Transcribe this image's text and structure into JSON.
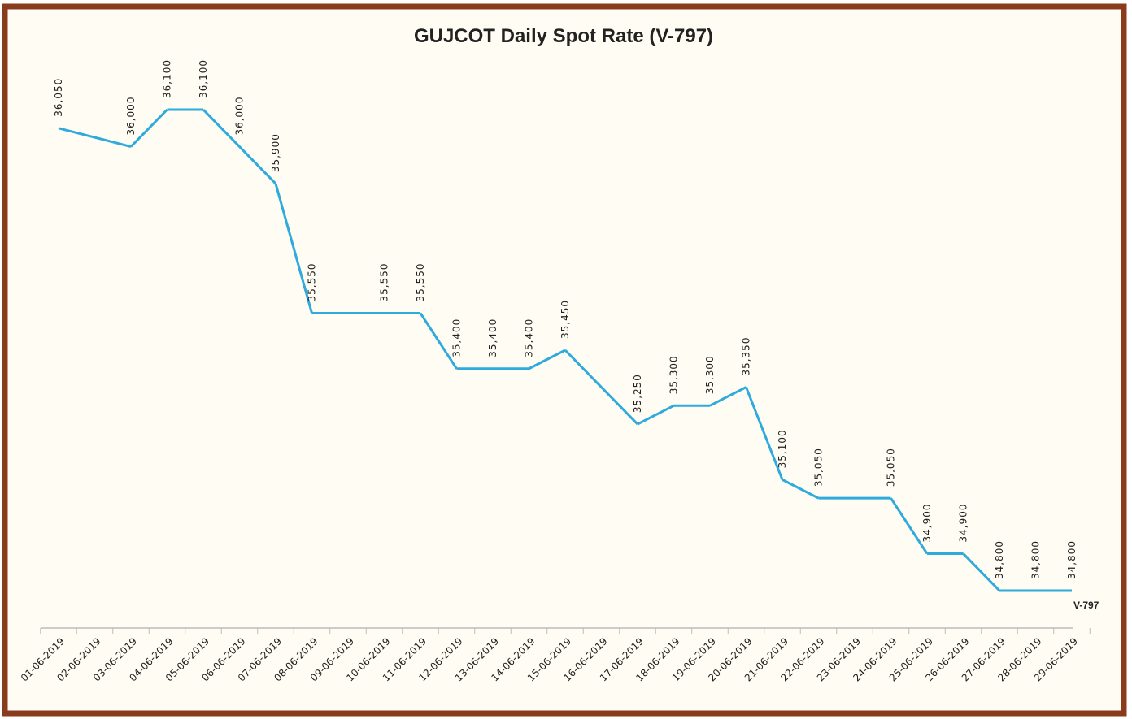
{
  "chart_data": {
    "type": "line",
    "title": "GUJCOT Daily Spot Rate (V-797)",
    "categories": [
      "01-06-2019",
      "02-06-2019",
      "03-06-2019",
      "04-06-2019",
      "05-06-2019",
      "06-06-2019",
      "07-06-2019",
      "08-06-2019",
      "09-06-2019",
      "10-06-2019",
      "11-06-2019",
      "12-06-2019",
      "13-06-2019",
      "14-06-2019",
      "15-06-2019",
      "16-06-2019",
      "17-06-2019",
      "18-06-2019",
      "19-06-2019",
      "20-06-2019",
      "21-06-2019",
      "22-06-2019",
      "23-06-2019",
      "24-06-2019",
      "25-06-2019",
      "26-06-2019",
      "27-06-2019",
      "28-06-2019",
      "29-06-2019"
    ],
    "series": [
      {
        "name": "V-797",
        "color": "#2eaadc",
        "values": [
          36050,
          null,
          36000,
          36100,
          36100,
          36000,
          35900,
          35550,
          null,
          35550,
          35550,
          35400,
          35400,
          35400,
          35450,
          null,
          35250,
          35300,
          35300,
          35350,
          35100,
          35050,
          null,
          35050,
          34900,
          34900,
          34800,
          34800,
          34800
        ],
        "value_labels": [
          "36,050",
          null,
          "36,000",
          "36,100",
          "36,100",
          "36,000",
          "35,900",
          "35,550",
          null,
          "35,550",
          "35,550",
          "35,400",
          "35,400",
          "35,400",
          "35,450",
          null,
          "35,250",
          "35,300",
          "35,300",
          "35,350",
          "35,100",
          "35,050",
          null,
          "35,050",
          "34,900",
          "34,900",
          "34,800",
          "34,800",
          "34,800"
        ]
      }
    ]
  }
}
